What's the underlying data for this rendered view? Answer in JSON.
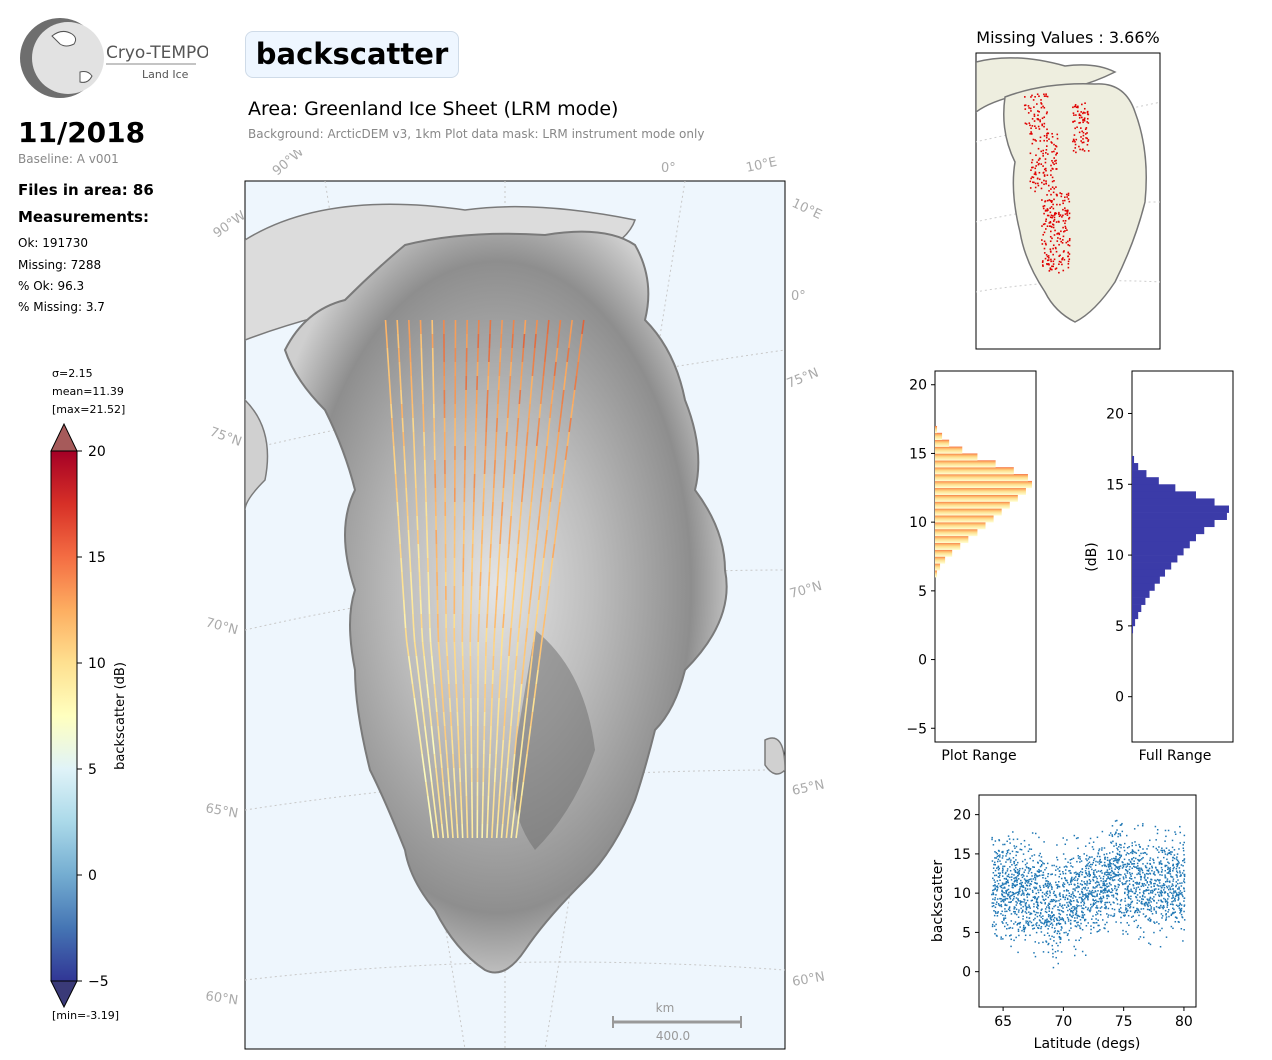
{
  "logo": {
    "name": "Cryo-TEMPO",
    "sub": "Land Ice"
  },
  "header": {
    "date": "11/2018",
    "baseline": "Baseline: A v001",
    "files": "Files in area: 86",
    "measurements_title": "Measurements:",
    "ok": "Ok: 191730",
    "missing": "Missing: 7288",
    "pct_ok": "% Ok: 96.3",
    "pct_missing": "% Missing: 3.7"
  },
  "title": "backscatter",
  "area_title": "Area: Greenland Ice Sheet (LRM mode)",
  "background_note": "Background: ArcticDEM v3, 1km   Plot data mask: LRM instrument mode only",
  "colorbar": {
    "sigma": "σ=2.15",
    "mean": "mean=11.39",
    "max": "[max=21.52]",
    "min": "[min=-3.19]",
    "label": "backscatter (dB)",
    "ticks": [
      "20",
      "15",
      "10",
      "5",
      "0",
      "−5"
    ],
    "range": [
      -5,
      20
    ]
  },
  "map": {
    "lon_labels": [
      "90°W",
      "90°W",
      "0°",
      "10°E",
      "10°E",
      "0°"
    ],
    "lat_labels_left": [
      "75°N",
      "70°N",
      "65°N",
      "60°N"
    ],
    "lat_labels_right": [
      "75°N",
      "70°N",
      "65°N",
      "60°N"
    ],
    "scale_unit": "km",
    "scale_value": "400.0",
    "colors": {
      "ocean": "#eef6fd",
      "coast": "#7a7a7a",
      "graticule": "#c8c8c8"
    }
  },
  "missing": {
    "title": "Missing Values : 3.66%",
    "land_color": "#eeeedf",
    "marker_color": "#e00000"
  },
  "chart_data": [
    {
      "type": "bar",
      "orientation": "horizontal",
      "name": "Plot Range histogram",
      "xlabel": "Plot Range",
      "ylim": [
        -6,
        21
      ],
      "yticks": [
        -5,
        0,
        5,
        10,
        15,
        20
      ],
      "bins": [
        6,
        6.5,
        7,
        7.5,
        8,
        8.5,
        9,
        9.5,
        10,
        10.5,
        11,
        11.5,
        12,
        12.5,
        13,
        13.5,
        14,
        14.5,
        15,
        15.5,
        16,
        16.5
      ],
      "counts": [
        2,
        5,
        10,
        17,
        25,
        33,
        42,
        50,
        58,
        66,
        74,
        82,
        90,
        96,
        92,
        78,
        60,
        42,
        27,
        14,
        7,
        2
      ]
    },
    {
      "type": "bar",
      "orientation": "horizontal",
      "name": "Full Range histogram",
      "xlabel": "Full Range",
      "ylabel": "(dB)",
      "ylim": [
        -3.2,
        23
      ],
      "yticks": [
        0,
        5,
        10,
        15,
        20
      ],
      "bins": [
        4.5,
        5,
        5.5,
        6,
        6.5,
        7,
        7.5,
        8,
        8.5,
        9,
        9.5,
        10,
        10.5,
        11,
        11.5,
        12,
        12.5,
        13,
        13.5,
        14,
        14.5,
        15,
        15.5,
        16,
        16.5
      ],
      "counts": [
        1,
        3,
        6,
        9,
        13,
        17,
        22,
        27,
        32,
        38,
        44,
        50,
        56,
        62,
        70,
        80,
        92,
        94,
        80,
        62,
        42,
        26,
        14,
        6,
        2
      ]
    },
    {
      "type": "scatter",
      "name": "backscatter vs latitude",
      "xlabel": "Latitude (degs)",
      "ylabel": "backscatter",
      "xlim": [
        63,
        81
      ],
      "ylim": [
        -4.5,
        22.5
      ],
      "xticks": [
        65,
        70,
        75,
        80
      ],
      "yticks": [
        0,
        5,
        10,
        15,
        20
      ],
      "color": "#1f77b4",
      "trend": [
        [
          64,
          11
        ],
        [
          66,
          10.5
        ],
        [
          68,
          9.5
        ],
        [
          69,
          8.5
        ],
        [
          70,
          9.5
        ],
        [
          72,
          10.5
        ],
        [
          73,
          11
        ],
        [
          74,
          12.5
        ],
        [
          75,
          12
        ],
        [
          76,
          11
        ],
        [
          78,
          11.5
        ],
        [
          80,
          11
        ]
      ]
    }
  ]
}
